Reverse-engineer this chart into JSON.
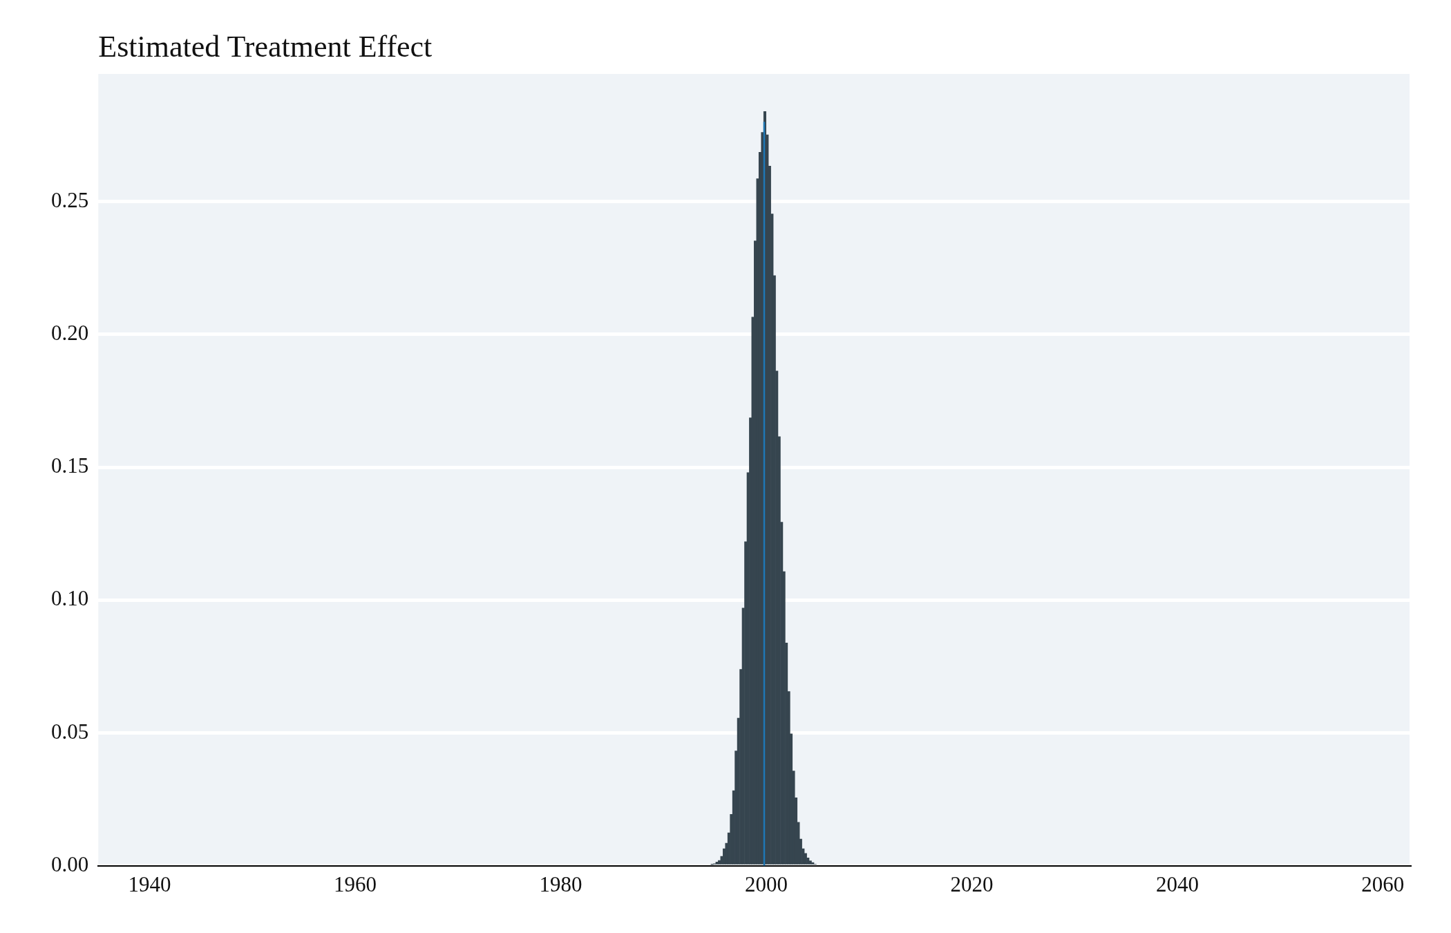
{
  "chart_data": {
    "type": "histogram",
    "title": "Estimated Treatment Effect",
    "series": [
      {
        "color": "#36454f",
        "bins": [
          1994.62,
          1994.85,
          1995.09,
          1995.32,
          1995.55,
          1995.79,
          1996.02,
          1996.25,
          1996.48,
          1996.72,
          1996.95,
          1997.18,
          1997.42,
          1997.65,
          1997.88,
          1998.12,
          1998.35,
          1998.58,
          1998.81,
          1999.05,
          1999.28,
          1999.51,
          1999.75,
          1999.98,
          2000.21,
          2000.45,
          2000.68,
          2000.91,
          2001.14,
          2001.38,
          2001.61,
          2001.84,
          2002.08,
          2002.31,
          2002.54,
          2002.78,
          2003.01,
          2003.24,
          2003.47,
          2003.71,
          2003.94,
          2004.17,
          2004.41,
          2004.64,
          2004.87
        ],
        "values": [
          0.0005,
          0.0008,
          0.0014,
          0.002,
          0.0036,
          0.0064,
          0.0085,
          0.0124,
          0.0194,
          0.0283,
          0.0432,
          0.0556,
          0.0739,
          0.097,
          0.122,
          0.148,
          0.1686,
          0.2065,
          0.2352,
          0.2586,
          0.2685,
          0.276,
          0.2839,
          0.2751,
          0.2633,
          0.2453,
          0.2221,
          0.1862,
          0.1615,
          0.1293,
          0.1107,
          0.0839,
          0.0656,
          0.0497,
          0.0357,
          0.0256,
          0.0164,
          0.0101,
          0.0064,
          0.0047,
          0.003,
          0.0019,
          0.0012,
          0.0006
        ]
      },
      {
        "type": "line",
        "color": "#1f77b4",
        "x": [
          1999.8,
          1999.8
        ],
        "values": [
          0,
          0.28
        ]
      }
    ],
    "xlim": [
      1935,
      2062.6
    ],
    "xticks": [
      1940,
      1960,
      1980,
      2000,
      2020,
      2040,
      2060
    ],
    "ylim": [
      0,
      0.298
    ],
    "yticks": [
      {
        "value": 0,
        "label": "0.00"
      },
      {
        "value": 0.05,
        "label": "0.05"
      },
      {
        "value": 0.1,
        "label": "0.10"
      },
      {
        "value": 0.15,
        "label": "0.15"
      },
      {
        "value": 0.2,
        "label": "0.20"
      },
      {
        "value": 0.25,
        "label": "0.25"
      }
    ],
    "grid": "y",
    "legend": false
  }
}
